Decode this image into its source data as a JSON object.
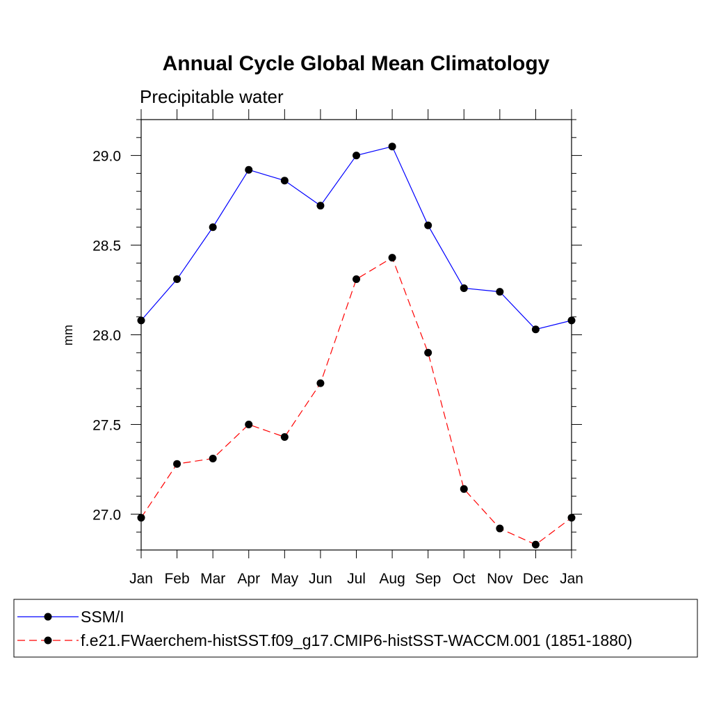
{
  "chart_data": {
    "type": "line",
    "title": "Annual Cycle Global Mean Climatology",
    "subtitle": "Precipitable water",
    "xlabel": "",
    "ylabel": "mm",
    "categories": [
      "Jan",
      "Feb",
      "Mar",
      "Apr",
      "May",
      "Jun",
      "Jul",
      "Aug",
      "Sep",
      "Oct",
      "Nov",
      "Dec",
      "Jan"
    ],
    "ylim": [
      26.8,
      29.2
    ],
    "yticks": [
      27.0,
      27.5,
      28.0,
      28.5,
      29.0
    ],
    "ytick_labels": [
      "27.0",
      "27.5",
      "28.0",
      "28.5",
      "29.0"
    ],
    "grid": false,
    "legend_position": "bottom",
    "series": [
      {
        "name": "SSM/I",
        "color": "#0000ff",
        "dashed": false,
        "values": [
          28.08,
          28.31,
          28.6,
          28.92,
          28.86,
          28.72,
          29.0,
          29.05,
          28.61,
          28.26,
          28.24,
          28.03,
          28.08
        ]
      },
      {
        "name": "f.e21.FWaerchem-histSST.f09_g17.CMIP6-histSST-WACCM.001 (1851-1880)",
        "color": "#ff0000",
        "dashed": true,
        "values": [
          26.98,
          27.28,
          27.31,
          27.5,
          27.43,
          27.73,
          28.31,
          28.43,
          27.9,
          27.14,
          26.92,
          26.83,
          26.98
        ]
      }
    ]
  }
}
